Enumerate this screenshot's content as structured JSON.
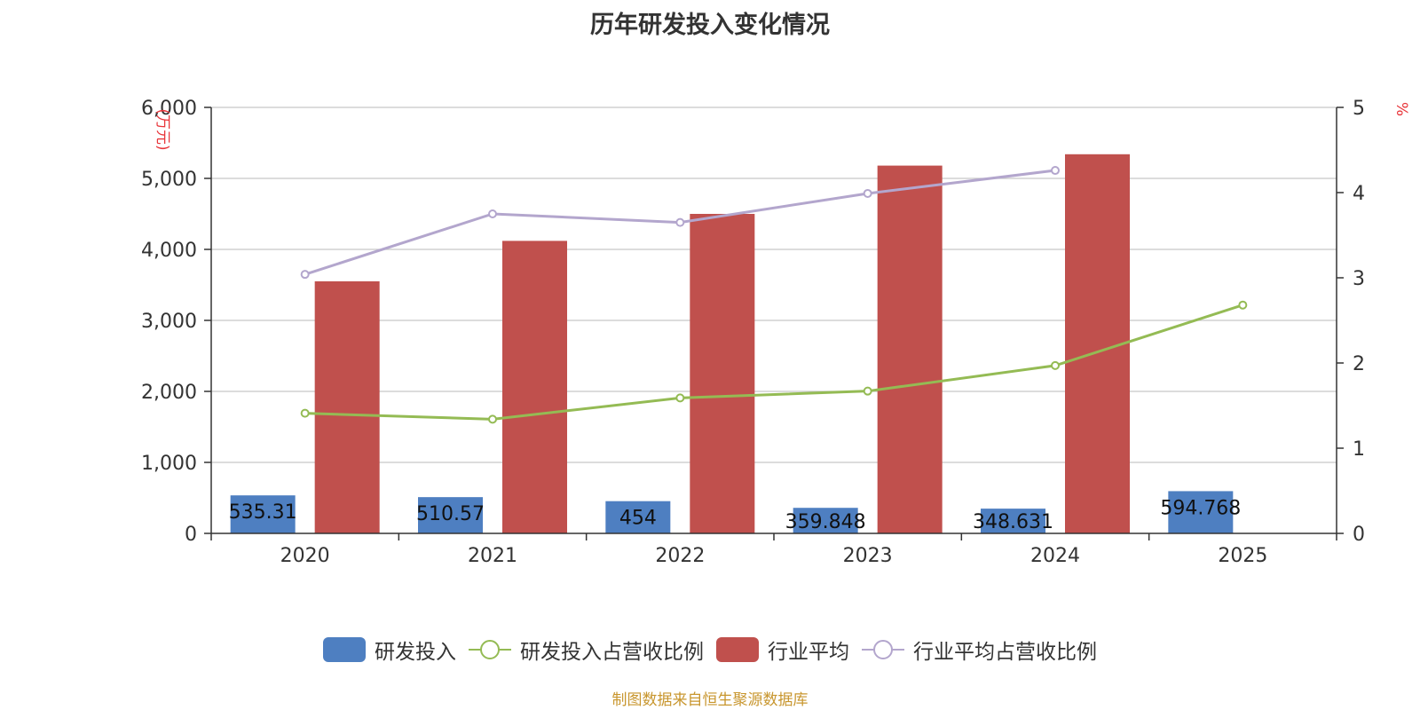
{
  "title": "历年研发投入变化情况",
  "source_note": "制图数据来自恒生聚源数据库",
  "chart_data": {
    "type": "bar",
    "categories": [
      "2020",
      "2021",
      "2022",
      "2023",
      "2024",
      "2025"
    ],
    "left_axis": {
      "unit_label": "(万元)",
      "ylim": [
        0,
        6000
      ],
      "ticks": [
        "0",
        "1,000",
        "2,000",
        "3,000",
        "4,000",
        "5,000",
        "6,000"
      ]
    },
    "right_axis": {
      "unit_label": "%",
      "ylim": [
        0,
        5
      ],
      "ticks": [
        "0",
        "1",
        "2",
        "3",
        "4",
        "5"
      ]
    },
    "series": [
      {
        "name": "研发投入",
        "kind": "bar",
        "axis": "left",
        "color": "#4e7fc1",
        "values": [
          535.31,
          510.57,
          454,
          359.848,
          348.631,
          594.768
        ],
        "labels": [
          "535.31",
          "510.57",
          "454",
          "359.848",
          "348.631",
          "594.768"
        ]
      },
      {
        "name": "研发投入占营收比例",
        "kind": "line",
        "axis": "right",
        "color": "#94bb54",
        "values": [
          1.41,
          1.34,
          1.59,
          1.67,
          1.97,
          2.68
        ]
      },
      {
        "name": "行业平均",
        "kind": "bar",
        "axis": "left",
        "color": "#c0504d",
        "values": [
          3550,
          4120,
          4500,
          5180,
          5340,
          null
        ]
      },
      {
        "name": "行业平均占营收比例",
        "kind": "line",
        "axis": "right",
        "color": "#b3a6cd",
        "values": [
          3.04,
          3.75,
          3.65,
          3.99,
          4.26,
          null
        ]
      }
    ],
    "grid": true,
    "legend_position": "bottom"
  }
}
